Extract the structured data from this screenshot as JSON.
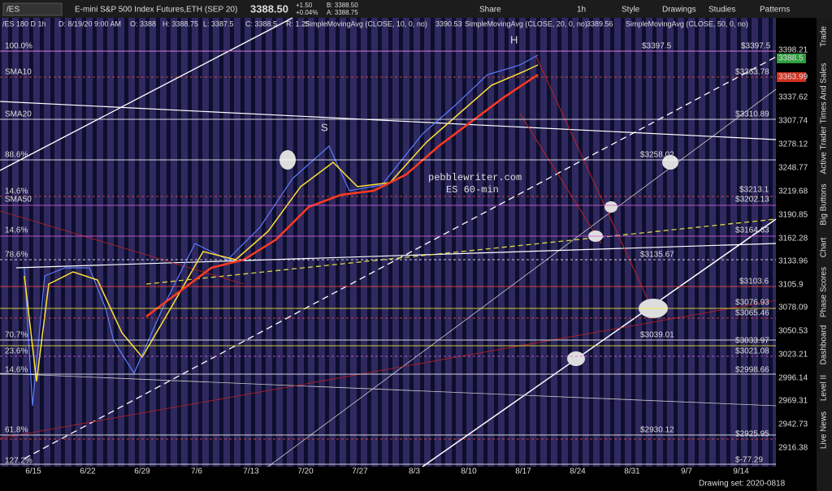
{
  "toolbar": {
    "symbol": "/ES",
    "description": "E-mini S&P 500 Index Futures,ETH (SEP 20)",
    "price": "3388.50",
    "change": "+1.50",
    "change_pct": "+0.04%",
    "bid": "B: 3388.50",
    "ask": "A: 3388.75",
    "buttons": [
      "Share",
      "1h",
      "Style",
      "Drawings",
      "Studies",
      "Patterns"
    ]
  },
  "info_line": [
    "/ES 180 D 1h",
    "D: 8/19/20 9:00 AM",
    "O: 3388",
    "H: 3388.75",
    "L: 3387.5",
    "C: 3388.5",
    "R: 1.25",
    "SimpleMovingAvg (CLOSE, 10, 0, no)",
    "3390.53",
    "SimpleMovingAvg (CLOSE, 20, 0, no)",
    "3389.56",
    "SimpleMovingAvg (CLOSE, 50, 0, no)"
  ],
  "price_axis": [
    "3398.21",
    "3337.62",
    "3307.74",
    "3278.12",
    "3248.77",
    "3219.68",
    "3190.85",
    "3162.28",
    "3133.96",
    "3105.9",
    "3078.09",
    "3050.53",
    "3023.21",
    "2996.14",
    "2969.31",
    "2942.73",
    "2916.38"
  ],
  "price_markers": [
    {
      "label": "3388.5",
      "color": "#2e9e3e"
    },
    {
      "label": "3363.99",
      "color": "#d03020"
    }
  ],
  "date_axis": [
    "6/15",
    "6/22",
    "6/29",
    "7/6",
    "7/13",
    "7/20",
    "7/27",
    "8/3",
    "8/10",
    "8/17",
    "8/24",
    "8/31",
    "9/7",
    "9/14"
  ],
  "levels": [
    {
      "label": "$3397.5",
      "color": "#ffffff"
    },
    {
      "label": "$3397.5",
      "color": "#e060e0"
    },
    {
      "label": "$3363.78",
      "color": "#ff4a3a"
    },
    {
      "label": "$3310.89",
      "color": "#ffffff"
    },
    {
      "label": "$3258.02",
      "color": "#ffffff"
    },
    {
      "label": "$3213.1",
      "color": "#ff4a3a"
    },
    {
      "label": "$3202.13",
      "color": "#e060e0"
    },
    {
      "label": "$3164.63",
      "color": "#e060e0"
    },
    {
      "label": "$3135.67",
      "color": "#ffffff"
    },
    {
      "label": "$3103.6",
      "color": "#ff4a3a"
    },
    {
      "label": "$3076.93",
      "color": "#ffee33"
    },
    {
      "label": "$3065.46",
      "color": "#ff4a3a"
    },
    {
      "label": "$3039.01",
      "color": "#ffffff"
    },
    {
      "label": "$3033.97",
      "color": "#ffee33"
    },
    {
      "label": "$3021.08",
      "color": "#e060e0"
    },
    {
      "label": "$2998.66",
      "color": "#ffffff"
    },
    {
      "label": "$2930.12",
      "color": "#ffffff"
    },
    {
      "label": "$2925.95",
      "color": "#ff4a3a"
    },
    {
      "label": "$-77.29",
      "color": "#ffffff"
    }
  ],
  "left_labels": [
    {
      "label": "100.0%",
      "color": "#ffffff"
    },
    {
      "label": "SMA10",
      "color": "#ff4a3a"
    },
    {
      "label": "SMA20",
      "color": "#ffffff"
    },
    {
      "label": "88.6%",
      "color": "#ffffff"
    },
    {
      "label": "14.6%",
      "color": "#ff4a3a"
    },
    {
      "label": "SMA50",
      "color": "#e060e0"
    },
    {
      "label": "14.6%",
      "color": "#e060e0"
    },
    {
      "label": "78.6%",
      "color": "#ffffff"
    },
    {
      "label": "70.7%",
      "color": "#ffffff"
    },
    {
      "label": "23.6%",
      "color": "#e060e0"
    },
    {
      "label": "14.6%",
      "color": "#ffffff"
    },
    {
      "label": "61.8%",
      "color": "#ffffff"
    },
    {
      "label": "127.2%",
      "color": "#ffffff"
    }
  ],
  "annotations": {
    "h": "H",
    "s": "S",
    "site": "pebblewriter.com",
    "subtitle": "ES 60-min"
  },
  "sidebar": [
    "Trade",
    "Times And Sales",
    "Active Trader",
    "Big Buttons",
    "Chart",
    "Phase Scores",
    "Dashboard",
    "Level II",
    "Live News"
  ],
  "footer": "Drawing set: 2020-0818"
}
